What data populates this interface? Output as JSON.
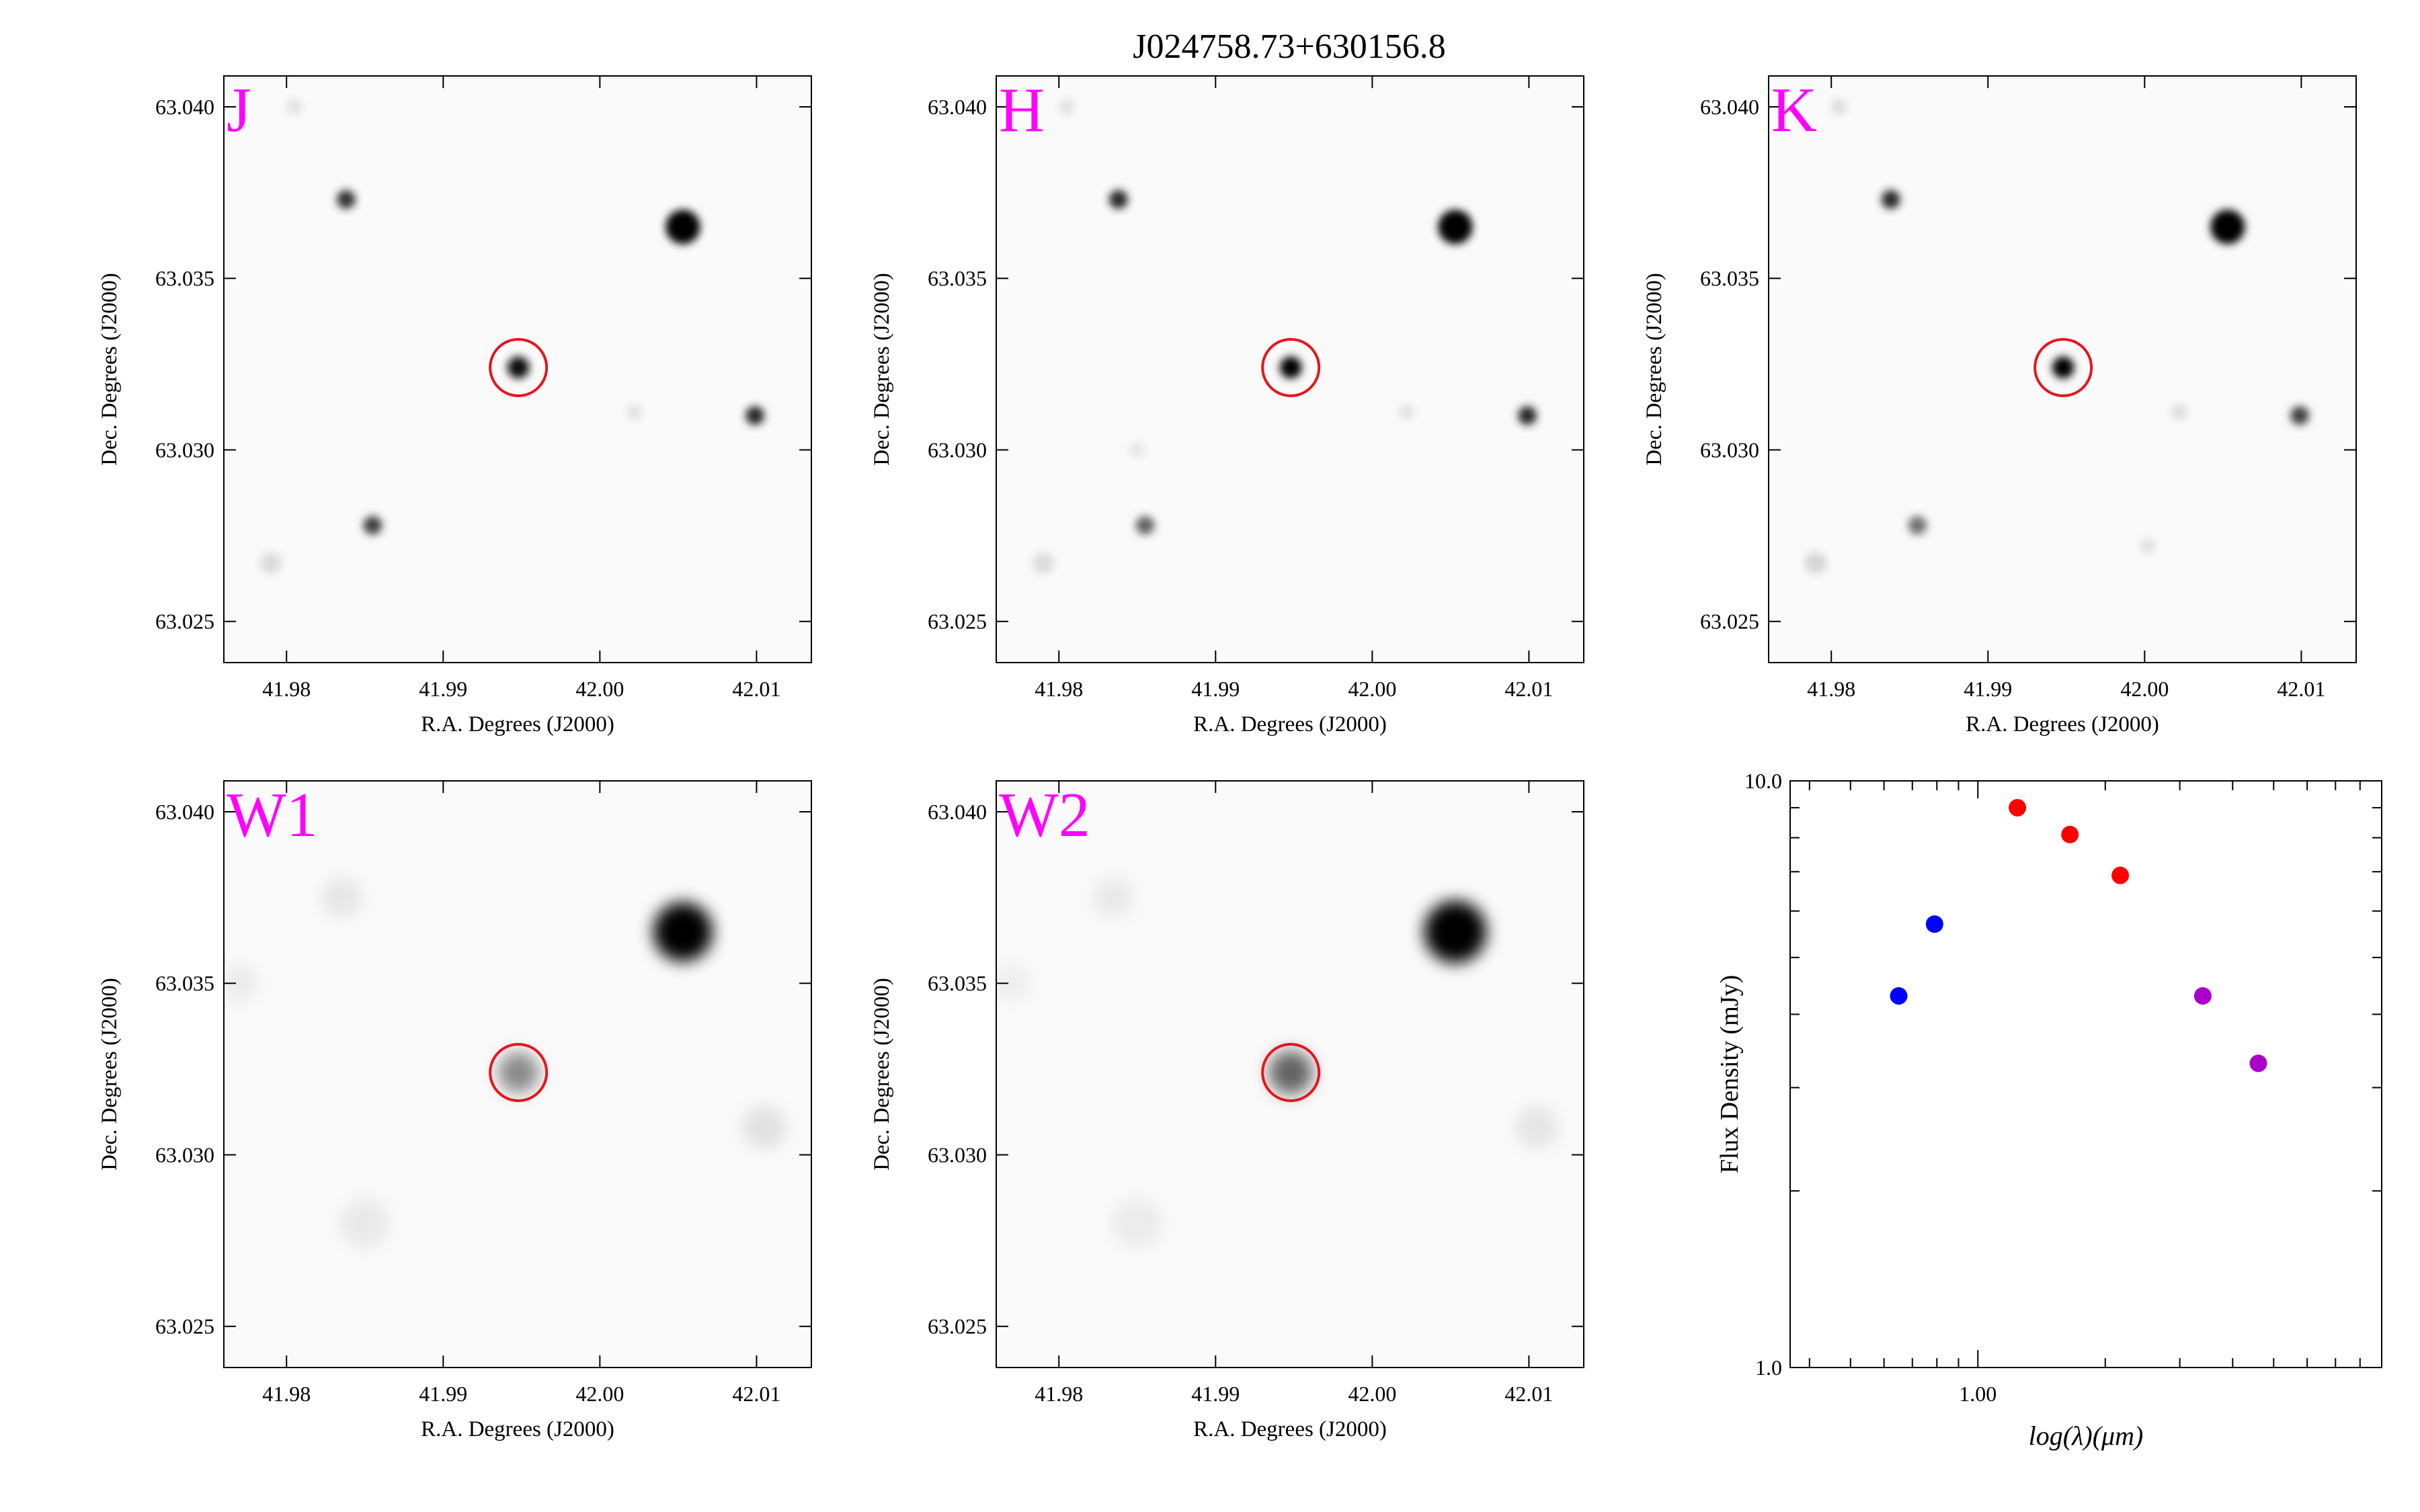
{
  "figure": {
    "title": "J024758.73+630156.8"
  },
  "image_axes": {
    "xlabel": "R.A. Degrees (J2000)",
    "ylabel": "Dec. Degrees (J2000)",
    "x_ticks": [
      "41.98",
      "41.99",
      "42.00",
      "42.01"
    ],
    "x_tick_values": [
      41.98,
      41.99,
      42.0,
      42.01
    ],
    "y_ticks": [
      "63.025",
      "63.030",
      "63.035",
      "63.040"
    ],
    "y_tick_values": [
      63.025,
      63.03,
      63.035,
      63.04
    ],
    "xlim": [
      41.976,
      42.0135
    ],
    "ylim": [
      63.0238,
      63.0409
    ],
    "target": {
      "ra": 41.9948,
      "dec": 63.0324
    }
  },
  "panels": [
    {
      "id": "j",
      "label": "J",
      "label_color": "#ff00ff",
      "blur": 1.0,
      "stars": [
        {
          "ra": 42.0053,
          "dec": 63.0365,
          "brightness": 1.0,
          "size": 0.0011
        },
        {
          "ra": 41.9948,
          "dec": 63.0324,
          "brightness": 0.95,
          "size": 0.0007
        },
        {
          "ra": 42.0099,
          "dec": 63.031,
          "brightness": 0.85,
          "size": 0.0006
        },
        {
          "ra": 41.9838,
          "dec": 63.0373,
          "brightness": 0.8,
          "size": 0.0006
        },
        {
          "ra": 41.9855,
          "dec": 63.0278,
          "brightness": 0.75,
          "size": 0.0006
        },
        {
          "ra": 41.979,
          "dec": 63.0267,
          "brightness": 0.12,
          "size": 0.0007
        },
        {
          "ra": 41.9805,
          "dec": 63.04,
          "brightness": 0.1,
          "size": 0.0005
        },
        {
          "ra": 42.0022,
          "dec": 63.0311,
          "brightness": 0.1,
          "size": 0.0005
        }
      ]
    },
    {
      "id": "h",
      "label": "H",
      "label_color": "#ff00ff",
      "blur": 1.0,
      "stars": [
        {
          "ra": 42.0053,
          "dec": 63.0365,
          "brightness": 1.0,
          "size": 0.0011
        },
        {
          "ra": 41.9948,
          "dec": 63.0324,
          "brightness": 1.0,
          "size": 0.0007
        },
        {
          "ra": 42.0099,
          "dec": 63.031,
          "brightness": 0.85,
          "size": 0.0006
        },
        {
          "ra": 41.9838,
          "dec": 63.0373,
          "brightness": 0.85,
          "size": 0.0006
        },
        {
          "ra": 41.9855,
          "dec": 63.0278,
          "brightness": 0.6,
          "size": 0.0006
        },
        {
          "ra": 41.979,
          "dec": 63.0267,
          "brightness": 0.12,
          "size": 0.0007
        },
        {
          "ra": 41.9805,
          "dec": 63.04,
          "brightness": 0.1,
          "size": 0.0005
        },
        {
          "ra": 42.0022,
          "dec": 63.0311,
          "brightness": 0.1,
          "size": 0.0005
        },
        {
          "ra": 41.985,
          "dec": 63.03,
          "brightness": 0.08,
          "size": 0.0005
        }
      ]
    },
    {
      "id": "k",
      "label": "K",
      "label_color": "#ff00ff",
      "blur": 1.0,
      "stars": [
        {
          "ra": 42.0053,
          "dec": 63.0365,
          "brightness": 1.0,
          "size": 0.0011
        },
        {
          "ra": 41.9948,
          "dec": 63.0324,
          "brightness": 1.0,
          "size": 0.0007
        },
        {
          "ra": 42.0099,
          "dec": 63.031,
          "brightness": 0.75,
          "size": 0.0006
        },
        {
          "ra": 41.9838,
          "dec": 63.0373,
          "brightness": 0.85,
          "size": 0.0006
        },
        {
          "ra": 41.9855,
          "dec": 63.0278,
          "brightness": 0.55,
          "size": 0.0006
        },
        {
          "ra": 41.979,
          "dec": 63.0267,
          "brightness": 0.15,
          "size": 0.0007
        },
        {
          "ra": 41.9805,
          "dec": 63.04,
          "brightness": 0.12,
          "size": 0.0005
        },
        {
          "ra": 42.0022,
          "dec": 63.0311,
          "brightness": 0.12,
          "size": 0.0005
        },
        {
          "ra": 42.0002,
          "dec": 63.0272,
          "brightness": 0.1,
          "size": 0.0005
        }
      ]
    },
    {
      "id": "w1",
      "label": "W1",
      "label_color": "#ff00ff",
      "blur": 2.0,
      "stars": [
        {
          "ra": 42.0053,
          "dec": 63.0365,
          "brightness": 1.0,
          "size": 0.0019
        },
        {
          "ra": 41.9948,
          "dec": 63.0324,
          "brightness": 0.45,
          "size": 0.0013
        },
        {
          "ra": 42.0105,
          "dec": 63.0308,
          "brightness": 0.1,
          "size": 0.0014
        },
        {
          "ra": 41.9835,
          "dec": 63.0375,
          "brightness": 0.08,
          "size": 0.0013
        },
        {
          "ra": 41.985,
          "dec": 63.028,
          "brightness": 0.07,
          "size": 0.0016
        },
        {
          "ra": 41.977,
          "dec": 63.035,
          "brightness": 0.06,
          "size": 0.0012
        }
      ]
    },
    {
      "id": "w2",
      "label": "W2",
      "label_color": "#ff00ff",
      "blur": 2.0,
      "stars": [
        {
          "ra": 42.0053,
          "dec": 63.0365,
          "brightness": 1.0,
          "size": 0.002
        },
        {
          "ra": 41.9948,
          "dec": 63.0324,
          "brightness": 0.6,
          "size": 0.0014
        },
        {
          "ra": 42.0105,
          "dec": 63.0308,
          "brightness": 0.08,
          "size": 0.0014
        },
        {
          "ra": 41.9835,
          "dec": 63.0375,
          "brightness": 0.07,
          "size": 0.0013
        },
        {
          "ra": 41.985,
          "dec": 63.028,
          "brightness": 0.06,
          "size": 0.0016
        },
        {
          "ra": 41.977,
          "dec": 63.035,
          "brightness": 0.05,
          "size": 0.0012
        }
      ]
    }
  ],
  "chart_data": {
    "type": "scatter",
    "title": "",
    "xlabel": "log(λ)(μm)",
    "ylabel": "Flux Density (mJy)",
    "x_scale": "log",
    "y_scale": "log",
    "xlim": [
      0.36,
      9.0
    ],
    "ylim": [
      1.0,
      10.0
    ],
    "x_tick_labels": [
      {
        "value": 1.0,
        "label": "1.00"
      }
    ],
    "y_tick_labels": [
      {
        "value": 1.0,
        "label": "1.0"
      },
      {
        "value": 10.0,
        "label": "10.0"
      }
    ],
    "grid": false,
    "points": [
      {
        "x": 0.65,
        "y": 4.3,
        "color": "#0000ff"
      },
      {
        "x": 0.79,
        "y": 5.7,
        "color": "#0000ff"
      },
      {
        "x": 1.24,
        "y": 9.0,
        "color": "#ff0000"
      },
      {
        "x": 1.65,
        "y": 8.1,
        "color": "#ff0000"
      },
      {
        "x": 2.17,
        "y": 6.9,
        "color": "#ff0000"
      },
      {
        "x": 3.4,
        "y": 4.3,
        "color": "#aa00cc"
      },
      {
        "x": 4.6,
        "y": 3.3,
        "color": "#aa00cc"
      }
    ]
  }
}
